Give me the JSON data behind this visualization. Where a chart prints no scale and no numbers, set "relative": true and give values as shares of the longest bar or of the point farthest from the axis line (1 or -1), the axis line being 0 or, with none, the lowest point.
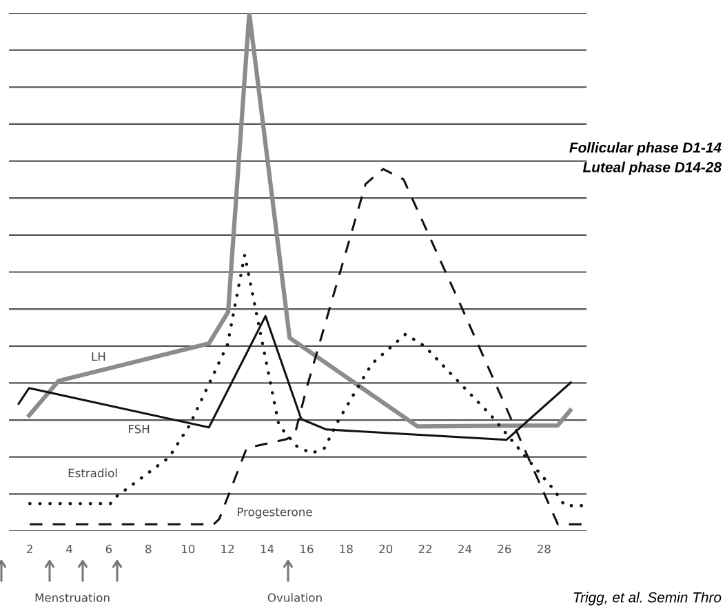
{
  "chart_data": {
    "type": "line",
    "relative": true,
    "xlim": [
      0.95,
      30.15
    ],
    "xticks": [
      2,
      4,
      6,
      8,
      10,
      12,
      14,
      16,
      18,
      20,
      22,
      24,
      26,
      28
    ],
    "tick_labels": "x",
    "grid": "y",
    "marker": "none",
    "series": [
      {
        "name": "LH",
        "color": "#8c8c8c",
        "line_style": "solid",
        "x": [
          1.9,
          3.46,
          11.06,
          12.03,
          13.1,
          15.14,
          21.6,
          28.7,
          29.4
        ],
        "values": [
          0.22,
          0.29,
          0.362,
          0.423,
          1.0,
          0.373,
          0.202,
          0.204,
          0.236
        ]
      },
      {
        "name": "FSH",
        "color": "#111111",
        "line_style": "solid",
        "x": [
          1.41,
          1.97,
          11.06,
          13.92,
          15.73,
          17.0,
          26.1,
          29.4
        ],
        "values": [
          0.244,
          0.276,
          0.2,
          0.415,
          0.216,
          0.196,
          0.176,
          0.288
        ]
      },
      {
        "name": "Estradiol",
        "color": "#111111",
        "line_style": "dotted",
        "x": [
          2,
          6.08,
          6.4,
          9.04,
          10.08,
          12.0,
          12.87,
          13.57,
          14.6,
          15.5,
          16.25,
          16.9,
          17.6,
          18.83,
          19.3,
          21.0,
          21.96,
          23.46,
          25.35,
          27.1,
          28.5,
          29.05,
          29.9
        ],
        "values": [
          0.053,
          0.053,
          0.067,
          0.142,
          0.204,
          0.36,
          0.533,
          0.4,
          0.204,
          0.164,
          0.15,
          0.16,
          0.213,
          0.293,
          0.323,
          0.38,
          0.357,
          0.297,
          0.222,
          0.142,
          0.08,
          0.049,
          0.049
        ]
      },
      {
        "name": "Progesterone",
        "color": "#111111",
        "line_style": "dashed",
        "x": [
          2,
          11.3,
          11.58,
          12.97,
          14.96,
          15.4,
          16.0,
          18.98,
          19.87,
          20.9,
          23.8,
          26.95,
          28.7,
          29.9
        ],
        "values": [
          0.013,
          0.013,
          0.023,
          0.16,
          0.177,
          0.186,
          0.276,
          0.67,
          0.699,
          0.679,
          0.435,
          0.164,
          0.013,
          0.013
        ]
      }
    ],
    "annotations": [
      "Follicular phase D1-14\nLuteal phase D14-28",
      "Menstruation",
      "Ovulation",
      "Trigg, et al. Semin Thro"
    ]
  }
}
